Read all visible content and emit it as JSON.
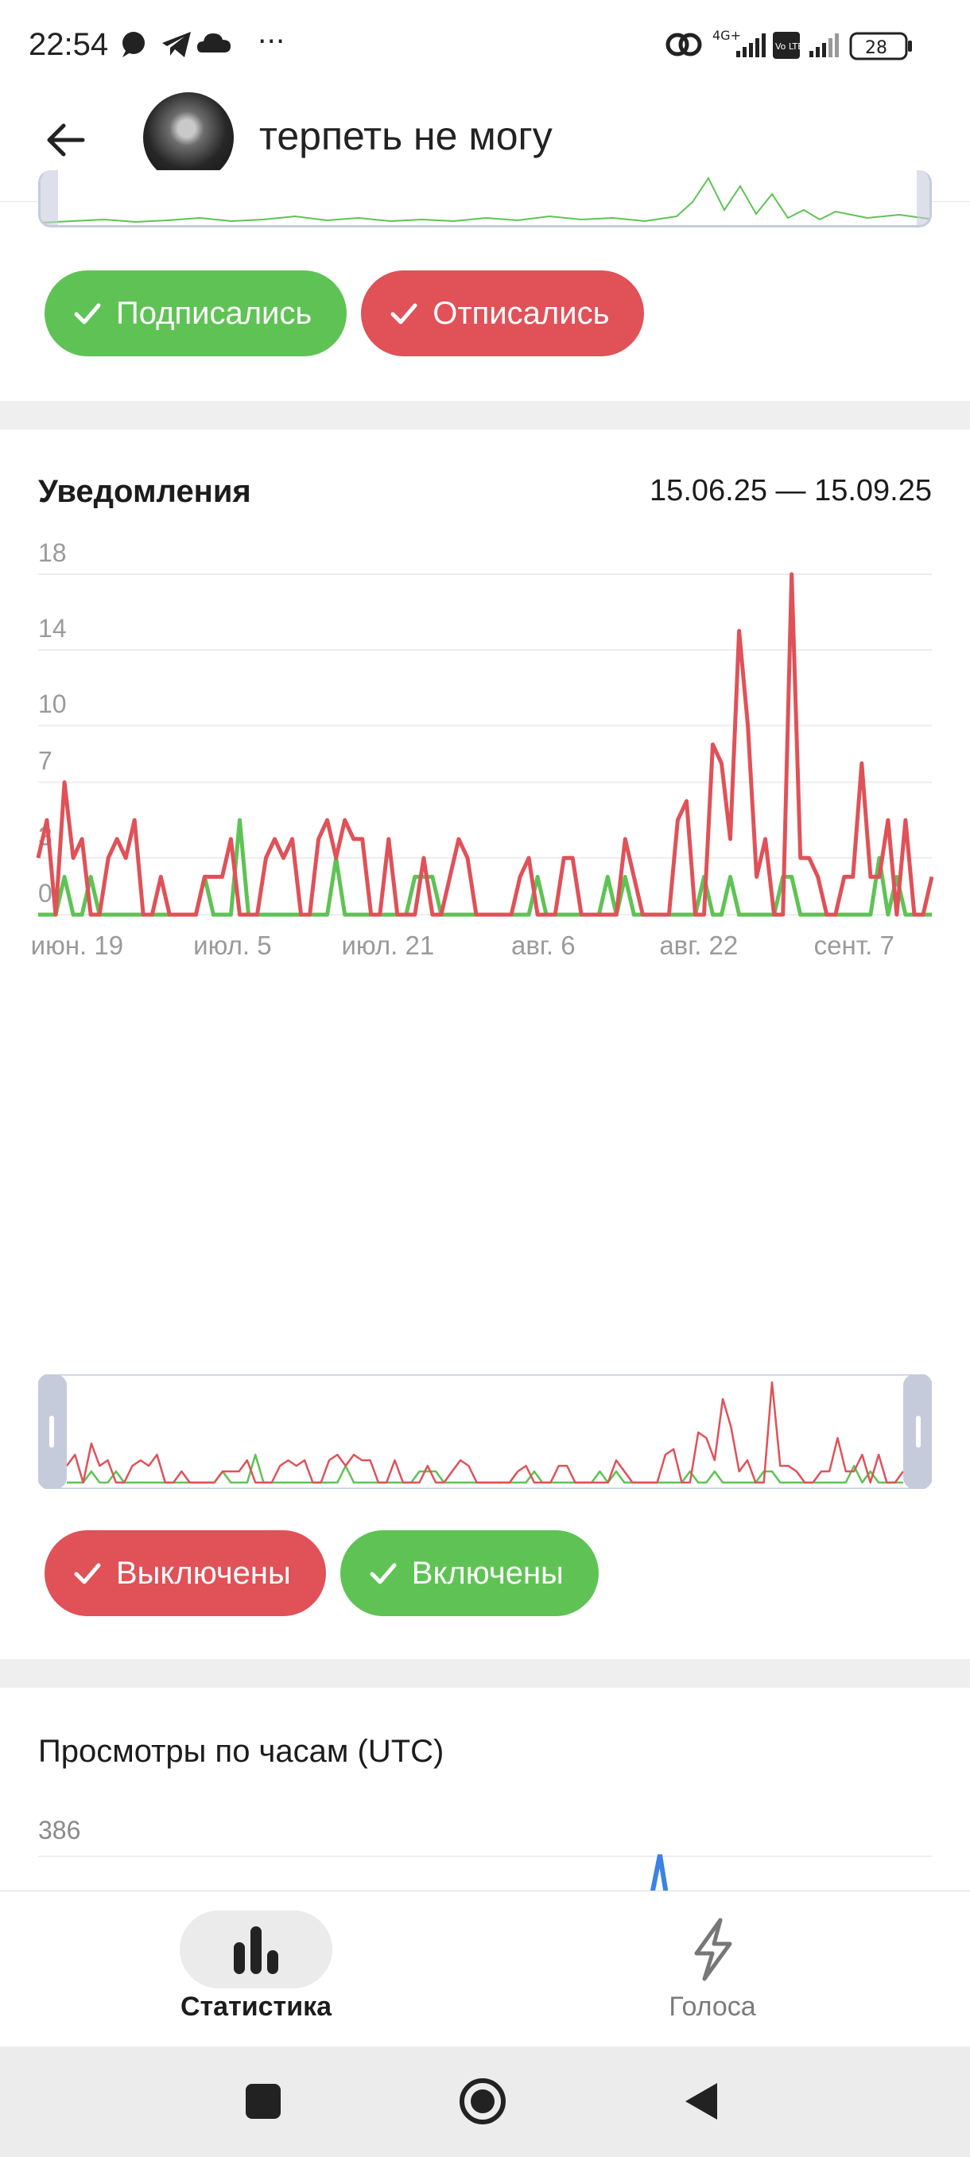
{
  "status_bar": {
    "time": "22:54",
    "network": "4G+",
    "volte": "Vo LTE",
    "battery": "28",
    "more": "···",
    "icons": [
      "message-icon",
      "telegram-icon",
      "cloud-icon",
      "link-icon",
      "signal-icon",
      "battery-icon"
    ]
  },
  "header": {
    "title": "терпеть не могу",
    "back_icon": "arrow-left-icon"
  },
  "followers_card": {
    "chips": [
      {
        "label": "Подписались",
        "color": "#5ec354"
      },
      {
        "label": "Отписались",
        "color": "#e05158"
      }
    ]
  },
  "notifications_card": {
    "title": "Уведомления",
    "range": "15.06.25 — 15.09.25",
    "chips": [
      {
        "label": "Выключены",
        "color": "#e05158"
      },
      {
        "label": "Включены",
        "color": "#5ec354"
      }
    ]
  },
  "chart_data": {
    "type": "line",
    "title": "Уведомления",
    "y_ticks": [
      "18",
      "14",
      "10",
      "7",
      "3",
      "0"
    ],
    "y_tick_values": [
      18,
      14,
      10,
      7,
      3,
      0
    ],
    "ylim": [
      0,
      18
    ],
    "x_ticks": [
      "июн. 19",
      "июл. 5",
      "июл. 21",
      "авг. 6",
      "авг. 22",
      "сент. 7"
    ],
    "x_tick_days": [
      4,
      20,
      36,
      52,
      68,
      84
    ],
    "x_range_days": [
      0,
      92
    ],
    "grid": true,
    "series": [
      {
        "name": "Выключены",
        "color": "#e05158",
        "values": [
          3,
          5,
          0,
          7,
          3,
          4,
          0,
          0,
          3,
          4,
          3,
          5,
          0,
          0,
          2,
          0,
          0,
          0,
          0,
          2,
          2,
          2,
          4,
          0,
          0,
          0,
          3,
          4,
          3,
          4,
          0,
          0,
          4,
          5,
          3,
          5,
          4,
          4,
          0,
          0,
          4,
          0,
          0,
          0,
          3,
          0,
          0,
          2,
          4,
          3,
          0,
          0,
          0,
          0,
          0,
          2,
          3,
          0,
          0,
          0,
          3,
          3,
          0,
          0,
          0,
          0,
          0,
          4,
          2,
          0,
          0,
          0,
          0,
          5,
          6,
          0,
          0,
          9,
          8,
          4,
          15,
          10,
          2,
          4,
          0,
          0,
          18,
          3,
          3,
          2,
          0,
          0,
          2,
          2,
          8,
          2,
          2,
          5,
          0,
          5,
          0,
          0,
          2
        ]
      },
      {
        "name": "Включены",
        "color": "#5ec354",
        "values": [
          0,
          0,
          0,
          2,
          0,
          0,
          2,
          0,
          0,
          0,
          0,
          0,
          0,
          0,
          0,
          0,
          0,
          0,
          0,
          2,
          0,
          0,
          0,
          5,
          0,
          0,
          0,
          0,
          0,
          0,
          0,
          0,
          0,
          0,
          3,
          0,
          0,
          0,
          0,
          0,
          0,
          0,
          0,
          2,
          2,
          2,
          0,
          0,
          0,
          0,
          0,
          0,
          0,
          0,
          0,
          0,
          0,
          2,
          0,
          0,
          0,
          0,
          0,
          0,
          0,
          2,
          0,
          2,
          0,
          0,
          0,
          0,
          0,
          0,
          0,
          0,
          2,
          0,
          0,
          2,
          0,
          0,
          0,
          0,
          0,
          2,
          2,
          0,
          0,
          0,
          0,
          0,
          0,
          0,
          0,
          0,
          3,
          0,
          2,
          0,
          0,
          0,
          0
        ]
      }
    ]
  },
  "hourly_card": {
    "title": "Просмотры по часам (UTC)",
    "y_top": "386",
    "peak_color": "#3b82e6"
  },
  "bottom_nav": {
    "items": [
      {
        "label": "Статистика",
        "icon": "bar-chart-icon",
        "active": true
      },
      {
        "label": "Голоса",
        "icon": "lightning-icon",
        "active": false
      }
    ]
  },
  "system_nav": {
    "icons": [
      "recent-apps-icon",
      "home-icon",
      "back-icon"
    ]
  }
}
